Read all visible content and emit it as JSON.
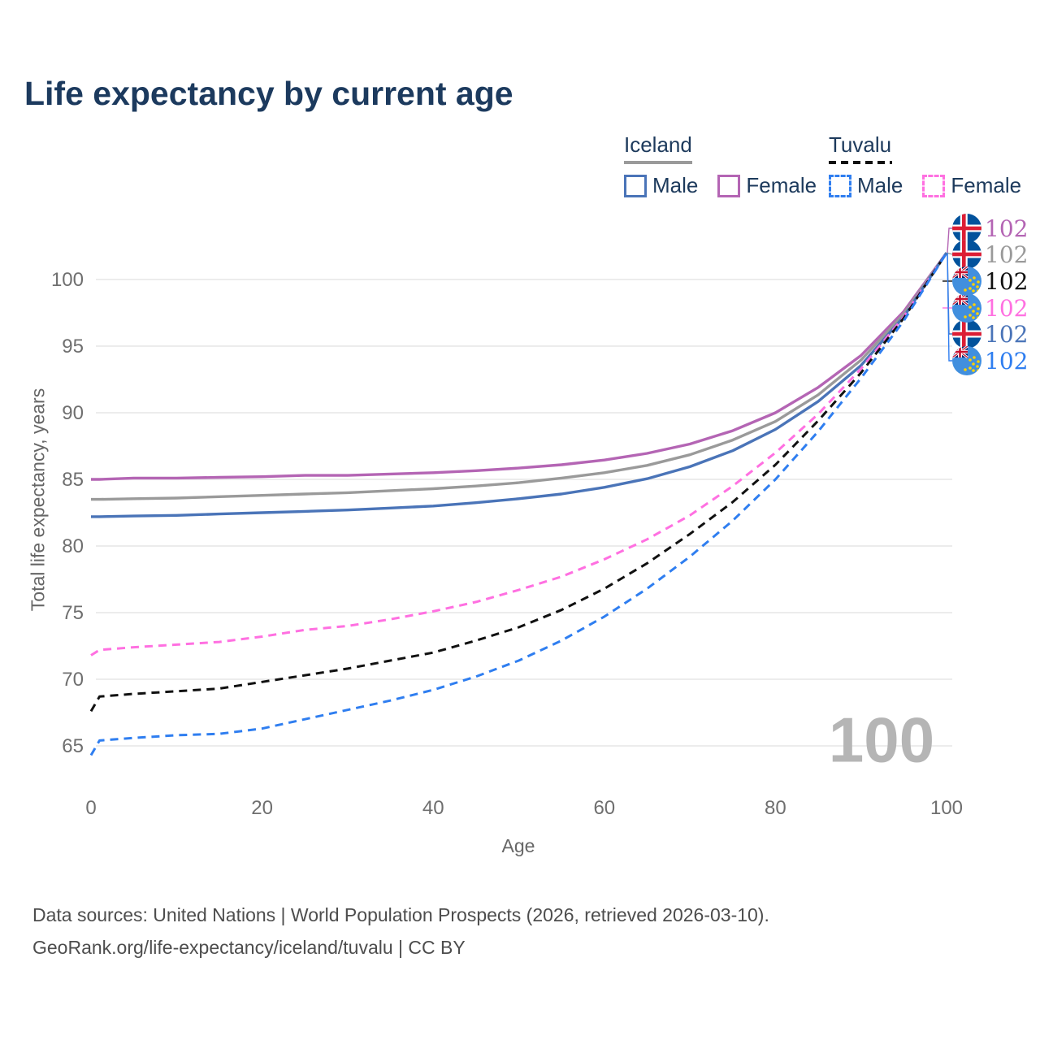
{
  "title": "Life expectancy by current age",
  "legend": {
    "groups": [
      {
        "country": "Iceland",
        "line_style": "solid",
        "underline_color": "#9a9a9a",
        "items": [
          {
            "label": "Male",
            "color": "#4a74b8"
          },
          {
            "label": "Female",
            "color": "#b465b4"
          }
        ]
      },
      {
        "country": "Tuvalu",
        "line_style": "dashed",
        "underline_color": "#111111",
        "items": [
          {
            "label": "Male",
            "color": "#2f7ef0"
          },
          {
            "label": "Female",
            "color": "#ff70e1"
          }
        ]
      }
    ]
  },
  "axes": {
    "y": {
      "title": "Total life expectancy, years",
      "ticks": [
        65,
        70,
        75,
        80,
        85,
        90,
        95,
        100
      ]
    },
    "x": {
      "title": "Age",
      "ticks": [
        0,
        20,
        40,
        60,
        80,
        100
      ]
    }
  },
  "watermark_age": "100",
  "footer": {
    "line1": "Data sources: United Nations | World Population Prospects (2026, retrieved 2026-03-10).",
    "line2": "GeoRank.org/life-expectancy/iceland/tuvalu | CC BY"
  },
  "chart_data": {
    "type": "line",
    "title": "Life expectancy by current age",
    "xlabel": "Age",
    "ylabel": "Total life expectancy, years",
    "xlim": [
      0,
      100
    ],
    "ylim": [
      62,
      103
    ],
    "grid": "horizontal",
    "legend_position": "top-right",
    "x": [
      0,
      1,
      5,
      10,
      15,
      20,
      25,
      30,
      35,
      40,
      45,
      50,
      55,
      60,
      65,
      70,
      75,
      80,
      85,
      90,
      95,
      100
    ],
    "series": [
      {
        "name": "Iceland Female",
        "flag": "iceland",
        "color": "#b465b4",
        "dash": false,
        "label_slot": 0,
        "end_label": "102",
        "values": [
          85.0,
          85.0,
          85.1,
          85.1,
          85.15,
          85.2,
          85.3,
          85.3,
          85.4,
          85.5,
          85.65,
          85.85,
          86.1,
          86.45,
          86.95,
          87.65,
          88.65,
          90.0,
          91.9,
          94.3,
          97.6,
          102
        ]
      },
      {
        "name": "Iceland All",
        "flag": "iceland",
        "color": "#9a9a9a",
        "dash": false,
        "label_slot": 1,
        "end_label": "102",
        "values": [
          83.5,
          83.5,
          83.55,
          83.6,
          83.7,
          83.8,
          83.9,
          84.0,
          84.15,
          84.3,
          84.5,
          84.75,
          85.1,
          85.5,
          86.05,
          86.85,
          87.95,
          89.35,
          91.35,
          93.95,
          97.4,
          102
        ]
      },
      {
        "name": "Iceland Male",
        "flag": "iceland",
        "color": "#4a74b8",
        "dash": false,
        "label_slot": 4,
        "end_label": "102",
        "values": [
          82.2,
          82.2,
          82.25,
          82.3,
          82.4,
          82.5,
          82.6,
          82.7,
          82.85,
          83.0,
          83.25,
          83.55,
          83.9,
          84.4,
          85.05,
          85.95,
          87.15,
          88.75,
          90.85,
          93.55,
          97.2,
          102
        ]
      },
      {
        "name": "Tuvalu Female",
        "flag": "tuvalu",
        "color": "#ff70e1",
        "dash": true,
        "label_slot": 3,
        "end_label": "102",
        "values": [
          71.8,
          72.2,
          72.4,
          72.6,
          72.8,
          73.2,
          73.7,
          74.0,
          74.5,
          75.1,
          75.8,
          76.7,
          77.7,
          79.0,
          80.5,
          82.3,
          84.5,
          87.0,
          89.9,
          93.3,
          97.2,
          102
        ]
      },
      {
        "name": "Tuvalu All",
        "flag": "tuvalu",
        "color": "#111111",
        "dash": true,
        "label_slot": 2,
        "end_label": "102",
        "values": [
          67.6,
          68.7,
          68.9,
          69.1,
          69.3,
          69.8,
          70.3,
          70.8,
          71.4,
          72.0,
          72.9,
          73.9,
          75.2,
          76.8,
          78.7,
          80.9,
          83.3,
          86.1,
          89.4,
          93.0,
          97.1,
          102
        ]
      },
      {
        "name": "Tuvalu Male",
        "flag": "tuvalu",
        "color": "#2f7ef0",
        "dash": true,
        "label_slot": 5,
        "end_label": "102",
        "values": [
          64.3,
          65.4,
          65.6,
          65.8,
          65.9,
          66.3,
          67.0,
          67.7,
          68.4,
          69.2,
          70.2,
          71.4,
          72.9,
          74.7,
          76.8,
          79.2,
          81.9,
          85.0,
          88.6,
          92.6,
          96.9,
          102
        ]
      }
    ]
  }
}
